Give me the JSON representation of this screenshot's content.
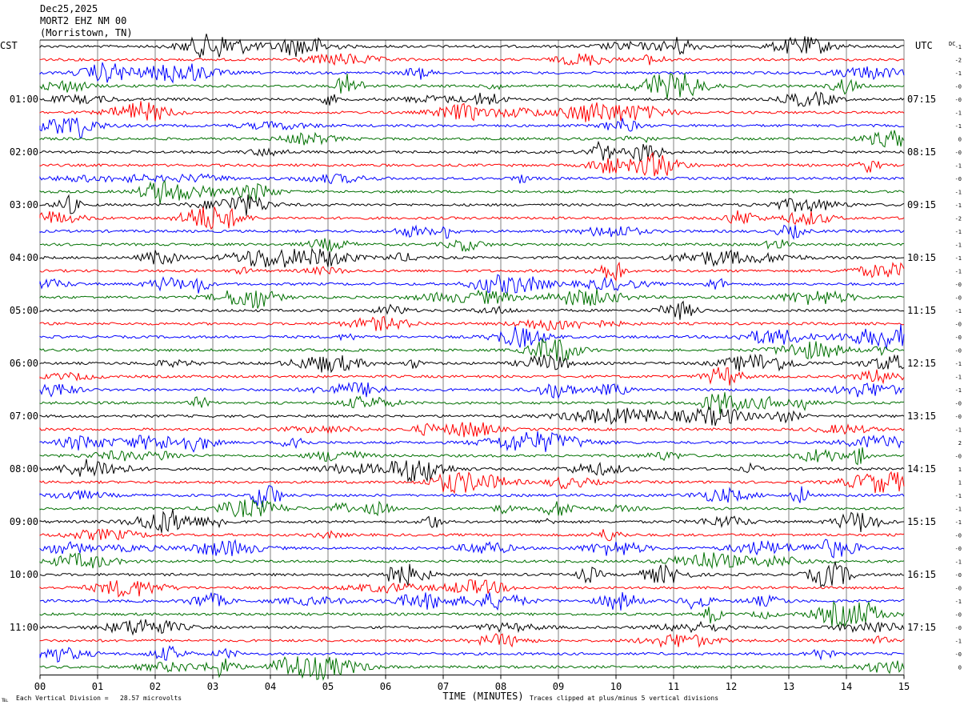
{
  "header": {
    "date": "Dec25,2025",
    "station": "MORT2 EHZ NM 00",
    "location": "(Morristown, TN)"
  },
  "left_zone": "CST",
  "right_zone": "UTC",
  "dc_label": "DC",
  "footer": {
    "scale_text": "Each Vertical Division =   28.57 microvolts",
    "clip_text": "Traces clipped at plus/minus 5 vertical divisions",
    "corner_mark": "℡"
  },
  "colors": {
    "cycle": [
      "#000000",
      "#ff0000",
      "#0000ff",
      "#007000"
    ],
    "grid": "#808080",
    "background": "#ffffff"
  },
  "chart_data": {
    "type": "line",
    "title": "",
    "xlabel": "TIME (MINUTES)",
    "ylabel": "",
    "xlim": [
      0,
      15
    ],
    "x_ticks": [
      "00",
      "01",
      "02",
      "03",
      "04",
      "05",
      "06",
      "07",
      "08",
      "09",
      "10",
      "11",
      "12",
      "13",
      "14",
      "15"
    ],
    "trace_minutes": 15,
    "trace_count": 48,
    "left_hour_labels": [
      "01:00",
      "02:00",
      "03:00",
      "04:00",
      "05:00",
      "06:00",
      "07:00",
      "08:00",
      "09:00",
      "10:00",
      "11:00"
    ],
    "right_hour_labels": [
      "07:15",
      "08:15",
      "09:15",
      "10:15",
      "11:15",
      "12:15",
      "13:15",
      "14:15",
      "15:15",
      "16:15",
      "17:15"
    ],
    "dc_offsets": [
      "-1",
      "-2",
      "-1",
      "-0",
      "-0",
      "-1",
      "-1",
      "0",
      "-0",
      "-1",
      "-0",
      "-1",
      "-1",
      "-2",
      "-1",
      "-1",
      "-1",
      "-1",
      "-0",
      "-0",
      "-1",
      "-0",
      "-0",
      "-0",
      "-1",
      "-1",
      "-1",
      "-0",
      "-0",
      "-1",
      "2",
      "-0",
      "1",
      "1",
      "-1",
      "-1",
      "-1",
      "-0",
      "-0",
      "-1",
      "-0",
      "-0",
      "-1",
      "-0",
      "-0",
      "-1",
      "-0",
      "0"
    ],
    "scale_microvolts_per_division": 28.57,
    "clip_divisions": 5
  }
}
